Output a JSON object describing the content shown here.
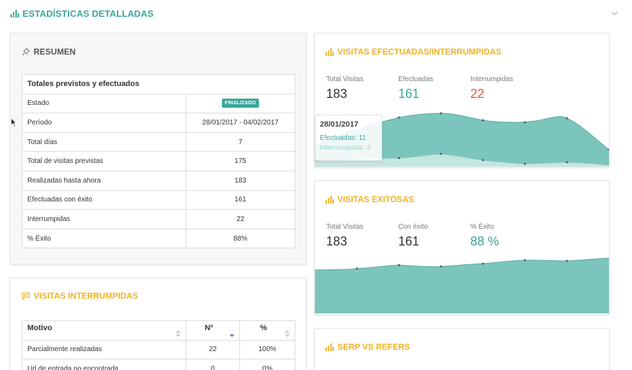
{
  "header": {
    "title": "ESTADÍSTICAS DETALLADAS"
  },
  "colors": {
    "teal": "#3aa89b",
    "teal_fill": "#7cc5bc",
    "teal_light": "#b7e0da",
    "yellow": "#f0b323",
    "red": "#d9613d"
  },
  "resumen": {
    "title": "RESUMEN",
    "table_title": "Totales previstos y efectuados",
    "rows": [
      {
        "label": "Estado",
        "value": "FINALIZADO",
        "badge": true
      },
      {
        "label": "Período",
        "value": "28/01/2017 - 04/02/2017"
      },
      {
        "label": "Total días",
        "value": "7"
      },
      {
        "label": "Total de visitas previstas",
        "value": "175"
      },
      {
        "label": "Realizadas hasta ahora",
        "value": "183"
      },
      {
        "label": "Efectuadas con éxito",
        "value": "161"
      },
      {
        "label": "Interrumpidas",
        "value": "22"
      },
      {
        "label": "% Éxito",
        "value": "88%"
      }
    ]
  },
  "interrumpidas": {
    "title": "VISITAS INTERRUMPIDAS",
    "columns": [
      "Motivo",
      "Nº",
      "%"
    ],
    "rows": [
      {
        "motivo": "Parcialmente realizadas",
        "n": "22",
        "pct": "100%"
      },
      {
        "motivo": "Url de entrada no encontrada",
        "n": "0",
        "pct": "0%"
      }
    ]
  },
  "efectuadas": {
    "title": "VISITAS EFECTUADAS/INTERRUMPIDAS",
    "stats": [
      {
        "label": "Total Visitas",
        "value": "183"
      },
      {
        "label": "Efectuadas",
        "value": "161"
      },
      {
        "label": "Interrumpidas",
        "value": "22"
      }
    ],
    "tooltip": {
      "date": "28/01/2017",
      "line1": "Efectuadas: 11",
      "line2": "Interrumpidas: 3"
    }
  },
  "exitosas": {
    "title": "VISITAS EXITOSAS",
    "stats": [
      {
        "label": "Total Visitas",
        "value": "183"
      },
      {
        "label": "Con éxito",
        "value": "161"
      },
      {
        "label": "% Éxito",
        "value": "88 %"
      }
    ]
  },
  "serp": {
    "title": "SERP VS REFERS"
  }
}
